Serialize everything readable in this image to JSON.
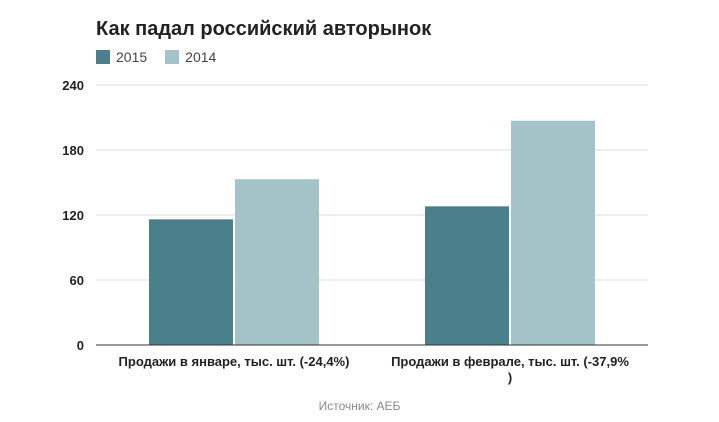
{
  "chart_data": {
    "type": "bar",
    "title": "Как падал российский авторынок",
    "categories": [
      [
        "Продажи в январе, тыс. шт. (-24,4%)"
      ],
      [
        "Продажи в феврале, тыс. шт. (-37,9%",
        ")"
      ]
    ],
    "series": [
      {
        "name": "2015",
        "color": "#4a7f8c",
        "values": [
          116,
          128
        ]
      },
      {
        "name": "2014",
        "color": "#a4c3c8",
        "values": [
          153,
          207
        ]
      }
    ],
    "ylim": [
      0,
      240
    ],
    "yticks": [
      "0",
      "60",
      "120",
      "180",
      "240"
    ],
    "grid": true,
    "legend": "top-left",
    "source": "Источник: АЕБ"
  }
}
